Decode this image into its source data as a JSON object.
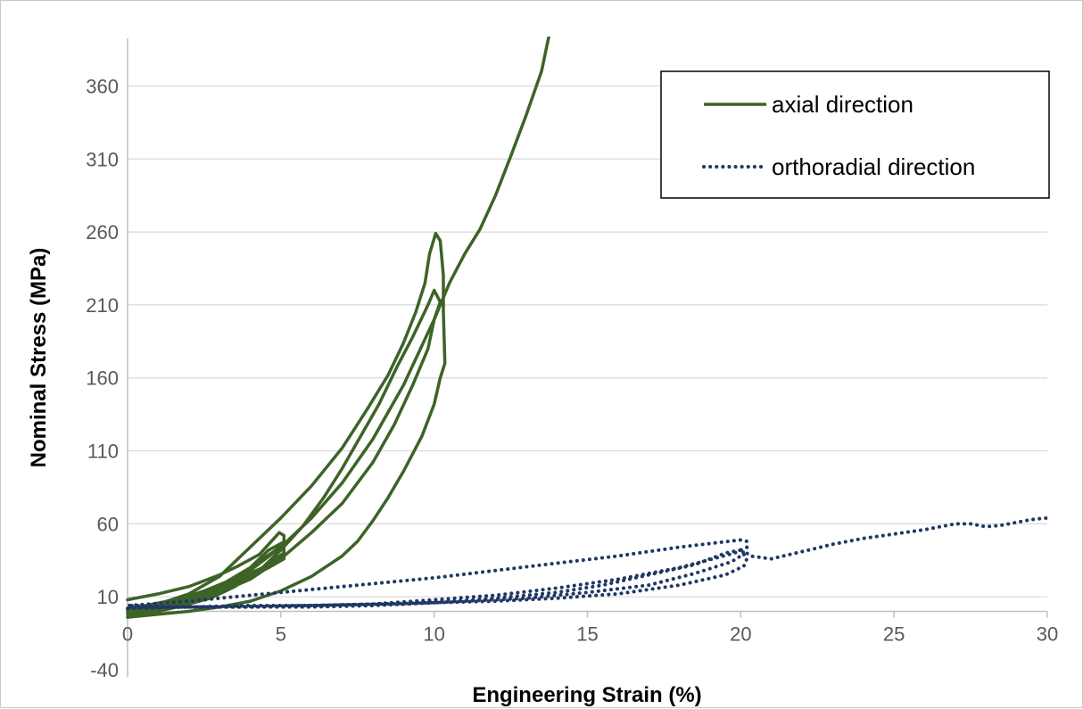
{
  "colors": {
    "axial": "#3d6327",
    "orthoradial": "#203864",
    "grid": "#d9d9d9",
    "axis": "#bfbfbf",
    "text": "#595959"
  },
  "chart_data": {
    "type": "line",
    "title": "",
    "xlabel": "Engineering Strain (%)",
    "ylabel": "Nominal Stress (MPa)",
    "xlim": [
      0,
      30
    ],
    "ylim": [
      -40,
      400
    ],
    "xticks": [
      0,
      5,
      10,
      15,
      20,
      25,
      30
    ],
    "yticks": [
      -40,
      10,
      60,
      110,
      160,
      210,
      260,
      310,
      360
    ],
    "grid": "horizontal",
    "legend": "top-right",
    "legend_entries": [
      "axial direction",
      "orthoradial direction"
    ],
    "series": [
      {
        "name": "axial direction",
        "style": "solid",
        "color": "#3d6327",
        "segments": [
          [
            [
              0,
              -4
            ],
            [
              0.8,
              0
            ],
            [
              1.6,
              4
            ],
            [
              2.5,
              10
            ],
            [
              3.2,
              18
            ],
            [
              4,
              30
            ],
            [
              4.6,
              42
            ],
            [
              5.05,
              47
            ],
            [
              5.1,
              40
            ],
            [
              4.4,
              30
            ],
            [
              3.6,
              22
            ],
            [
              2.8,
              14
            ],
            [
              2,
              8
            ],
            [
              1,
              3
            ],
            [
              0,
              0
            ],
            [
              0.8,
              4
            ],
            [
              1.6,
              8
            ],
            [
              2.5,
              14
            ],
            [
              3.2,
              20
            ],
            [
              4,
              30
            ],
            [
              4.7,
              40
            ],
            [
              5.1,
              46
            ],
            [
              5.1,
              38
            ],
            [
              4.3,
              27
            ],
            [
              3.5,
              18
            ],
            [
              2.6,
              11
            ],
            [
              1.8,
              6
            ],
            [
              0.8,
              1
            ],
            [
              0,
              -1
            ],
            [
              0.6,
              2
            ],
            [
              1.4,
              5
            ],
            [
              2.2,
              10
            ],
            [
              3,
              15
            ],
            [
              3.8,
              22
            ],
            [
              4.6,
              30
            ],
            [
              5.1,
              36
            ]
          ],
          [
            [
              0,
              8
            ],
            [
              1,
              12
            ],
            [
              2,
              17
            ],
            [
              3,
              25
            ],
            [
              3.6,
              31
            ],
            [
              4.3,
              39
            ],
            [
              4.95,
              54
            ],
            [
              5.1,
              52
            ],
            [
              5.1,
              36
            ],
            [
              4.5,
              30
            ],
            [
              3.6,
              22
            ],
            [
              2.7,
              14
            ],
            [
              1.9,
              9
            ],
            [
              1,
              4
            ],
            [
              0,
              2
            ],
            [
              0.6,
              4
            ],
            [
              1.3,
              7
            ],
            [
              2,
              10
            ]
          ],
          [
            [
              0,
              0
            ],
            [
              1,
              5
            ],
            [
              2,
              12
            ],
            [
              3,
              24
            ],
            [
              4,
              44
            ],
            [
              5,
              64
            ],
            [
              6,
              86
            ],
            [
              7,
              112
            ],
            [
              7.8,
              138
            ],
            [
              8.5,
              162
            ],
            [
              9,
              184
            ],
            [
              9.4,
              205
            ],
            [
              9.7,
              225
            ],
            [
              9.85,
              245
            ],
            [
              10.05,
              259
            ],
            [
              10.2,
              254
            ],
            [
              10.3,
              230
            ],
            [
              10.3,
              205
            ],
            [
              10.35,
              170
            ],
            [
              10.2,
              160
            ],
            [
              10,
              142
            ],
            [
              9.6,
              120
            ],
            [
              9,
              96
            ],
            [
              8.5,
              78
            ],
            [
              8,
              62
            ],
            [
              7.5,
              48
            ],
            [
              7,
              38
            ],
            [
              6,
              24
            ],
            [
              5,
              14
            ],
            [
              4,
              7
            ],
            [
              3,
              3
            ],
            [
              2,
              0
            ],
            [
              1,
              -2
            ],
            [
              0,
              -4
            ],
            [
              1,
              0
            ],
            [
              2,
              5
            ],
            [
              3,
              13
            ],
            [
              4,
              22
            ],
            [
              5,
              36
            ],
            [
              6,
              54
            ],
            [
              7,
              74
            ],
            [
              8,
              102
            ],
            [
              8.7,
              128
            ],
            [
              9.3,
              155
            ],
            [
              9.8,
              180
            ],
            [
              10,
              200
            ],
            [
              10.2,
              212
            ],
            [
              10,
              220
            ],
            [
              9.8,
              210
            ],
            [
              9.3,
              188
            ],
            [
              8.8,
              168
            ],
            [
              8.2,
              142
            ],
            [
              7.6,
              120
            ],
            [
              7,
              98
            ],
            [
              6.4,
              78
            ],
            [
              5.7,
              58
            ],
            [
              5,
              42
            ],
            [
              4.3,
              28
            ],
            [
              3.5,
              17
            ],
            [
              2.7,
              9
            ],
            [
              1.8,
              4
            ],
            [
              1,
              0
            ],
            [
              0,
              -2
            ],
            [
              1,
              2
            ],
            [
              2,
              8
            ],
            [
              3,
              16
            ],
            [
              4,
              28
            ],
            [
              5,
              44
            ],
            [
              6,
              64
            ],
            [
              7,
              88
            ],
            [
              8,
              118
            ],
            [
              9,
              155
            ],
            [
              9.6,
              182
            ],
            [
              10,
              200
            ],
            [
              10.5,
              225
            ],
            [
              11,
              245
            ],
            [
              11.5,
              262
            ],
            [
              12,
              285
            ],
            [
              12.5,
              312
            ],
            [
              13,
              340
            ],
            [
              13.5,
              370
            ],
            [
              13.8,
              400
            ]
          ]
        ]
      },
      {
        "name": "orthoradial direction",
        "style": "dotted",
        "color": "#203864",
        "segments": [
          [
            [
              0,
              2
            ],
            [
              2,
              3
            ],
            [
              4,
              4
            ],
            [
              6,
              4
            ],
            [
              8,
              5
            ],
            [
              10,
              6
            ],
            [
              12,
              7
            ],
            [
              14,
              9
            ],
            [
              16,
              12
            ],
            [
              18,
              18
            ],
            [
              19.5,
              25
            ],
            [
              20.1,
              31
            ],
            [
              20.2,
              36
            ],
            [
              20,
              42
            ],
            [
              19.5,
              40
            ],
            [
              18.5,
              32
            ],
            [
              17,
              25
            ],
            [
              15.5,
              18
            ],
            [
              14,
              13
            ],
            [
              12,
              9
            ],
            [
              10,
              6
            ],
            [
              8,
              4
            ],
            [
              6,
              3
            ],
            [
              4,
              3
            ],
            [
              2,
              3
            ],
            [
              0,
              3
            ],
            [
              3,
              3
            ],
            [
              6,
              4
            ],
            [
              9,
              5
            ],
            [
              11,
              7
            ],
            [
              13,
              9
            ],
            [
              15,
              13
            ],
            [
              17,
              18
            ],
            [
              18.5,
              26
            ],
            [
              19.7,
              34
            ],
            [
              20,
              38
            ],
            [
              20.2,
              44
            ],
            [
              19.8,
              40
            ],
            [
              18,
              30
            ],
            [
              16,
              22
            ],
            [
              14,
              16
            ],
            [
              12,
              11
            ],
            [
              10,
              8
            ],
            [
              8,
              5
            ],
            [
              6,
              4
            ],
            [
              4,
              3
            ],
            [
              2,
              3
            ],
            [
              0,
              4
            ],
            [
              2,
              7
            ],
            [
              4,
              11
            ],
            [
              6,
              15
            ],
            [
              8,
              19
            ],
            [
              10,
              23
            ],
            [
              12,
              28
            ],
            [
              14,
              33
            ],
            [
              16,
              38
            ],
            [
              18,
              44
            ],
            [
              20,
              49
            ],
            [
              20.2,
              48
            ],
            [
              20.2,
              40
            ],
            [
              20.3,
              38
            ],
            [
              21,
              36
            ],
            [
              22,
              41
            ],
            [
              23,
              46
            ],
            [
              24,
              50
            ],
            [
              25,
              53
            ],
            [
              26,
              56
            ],
            [
              27,
              60
            ],
            [
              27.5,
              60
            ],
            [
              28,
              58
            ],
            [
              28.5,
              59
            ],
            [
              29,
              61
            ],
            [
              29.5,
              63
            ],
            [
              30,
              64
            ]
          ]
        ]
      }
    ]
  }
}
